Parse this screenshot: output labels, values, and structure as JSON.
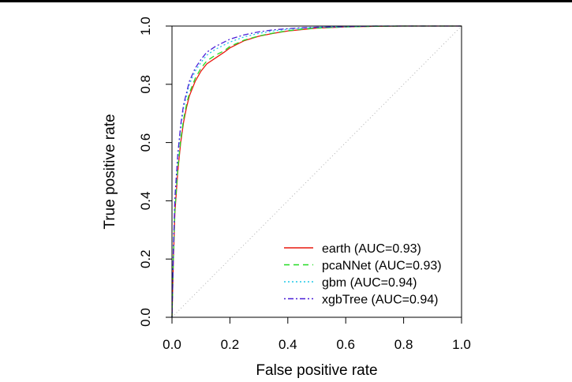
{
  "chart_data": {
    "type": "line",
    "xlabel": "False positive rate",
    "ylabel": "True positive rate",
    "xlim": [
      0,
      1
    ],
    "ylim": [
      0,
      1
    ],
    "x_ticks": [
      "0.0",
      "0.2",
      "0.4",
      "0.6",
      "0.8",
      "1.0"
    ],
    "y_ticks": [
      "0.0",
      "0.2",
      "0.4",
      "0.6",
      "0.8",
      "1.0"
    ],
    "grid": false,
    "legend_position": "bottom-right",
    "reference_line": {
      "x": [
        0,
        1
      ],
      "y": [
        0,
        1
      ],
      "color": "#b0b0b0",
      "style": "dotted"
    },
    "series": [
      {
        "name": "earth (AUC=0.93)",
        "color": "#e8190f",
        "style": "solid",
        "x": [
          0,
          0.005,
          0.01,
          0.02,
          0.03,
          0.04,
          0.05,
          0.06,
          0.08,
          0.1,
          0.12,
          0.15,
          0.18,
          0.2,
          0.25,
          0.3,
          0.35,
          0.4,
          0.45,
          0.5,
          0.6,
          0.7,
          0.8,
          0.9,
          1.0
        ],
        "y": [
          0,
          0.2,
          0.36,
          0.5,
          0.6,
          0.67,
          0.72,
          0.76,
          0.81,
          0.845,
          0.87,
          0.89,
          0.91,
          0.925,
          0.95,
          0.965,
          0.975,
          0.983,
          0.988,
          0.993,
          0.997,
          0.999,
          1.0,
          1.0,
          1.0
        ]
      },
      {
        "name": "pcaNNet (AUC=0.93)",
        "color": "#22dd22",
        "style": "dashed",
        "x": [
          0,
          0.005,
          0.01,
          0.02,
          0.03,
          0.04,
          0.05,
          0.06,
          0.08,
          0.1,
          0.12,
          0.15,
          0.18,
          0.2,
          0.25,
          0.3,
          0.35,
          0.4,
          0.45,
          0.5,
          0.6,
          0.7,
          0.8,
          0.9,
          1.0
        ],
        "y": [
          0,
          0.21,
          0.37,
          0.51,
          0.61,
          0.68,
          0.73,
          0.77,
          0.82,
          0.855,
          0.88,
          0.9,
          0.915,
          0.93,
          0.952,
          0.966,
          0.976,
          0.984,
          0.989,
          0.993,
          0.997,
          0.999,
          1.0,
          1.0,
          1.0
        ]
      },
      {
        "name": "gbm (AUC=0.94)",
        "color": "#1ec8e8",
        "style": "dotted",
        "x": [
          0,
          0.005,
          0.01,
          0.02,
          0.03,
          0.04,
          0.05,
          0.06,
          0.08,
          0.1,
          0.12,
          0.15,
          0.18,
          0.2,
          0.25,
          0.3,
          0.35,
          0.4,
          0.45,
          0.5,
          0.6,
          0.7,
          0.8,
          0.9,
          1.0
        ],
        "y": [
          0,
          0.23,
          0.4,
          0.55,
          0.65,
          0.72,
          0.76,
          0.8,
          0.845,
          0.875,
          0.9,
          0.92,
          0.935,
          0.945,
          0.963,
          0.975,
          0.983,
          0.989,
          0.993,
          0.996,
          0.998,
          1.0,
          1.0,
          1.0,
          1.0
        ]
      },
      {
        "name": "xgbTree (AUC=0.94)",
        "color": "#4a1fd8",
        "style": "dotdash",
        "x": [
          0,
          0.005,
          0.01,
          0.02,
          0.03,
          0.04,
          0.05,
          0.06,
          0.08,
          0.1,
          0.12,
          0.15,
          0.18,
          0.2,
          0.25,
          0.3,
          0.35,
          0.4,
          0.45,
          0.5,
          0.6,
          0.7,
          0.8,
          0.9,
          1.0
        ],
        "y": [
          0,
          0.24,
          0.41,
          0.56,
          0.66,
          0.73,
          0.77,
          0.81,
          0.855,
          0.885,
          0.91,
          0.93,
          0.945,
          0.955,
          0.97,
          0.98,
          0.987,
          0.991,
          0.994,
          0.996,
          0.998,
          1.0,
          1.0,
          1.0,
          1.0
        ]
      }
    ]
  }
}
